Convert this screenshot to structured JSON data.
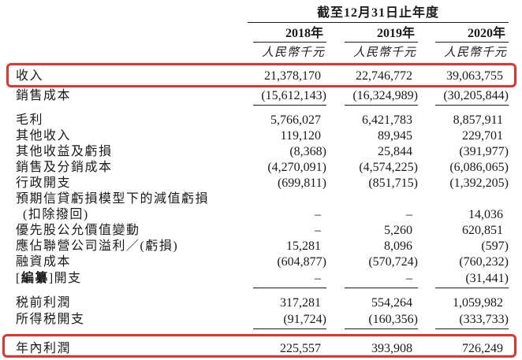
{
  "page": {
    "background": "#ffffff",
    "highlight_color": "#e9322a"
  },
  "table": {
    "header": {
      "period": "截至12月31日止年度",
      "years": [
        "2018年",
        "2019年",
        "2020年"
      ],
      "unit": "人民幣千元"
    },
    "rows": [
      {
        "label": "收入",
        "y2018": "21,378,170",
        "y2019": "22,746,772",
        "y2020": "39,063,755"
      },
      {
        "label": "銷售成本",
        "y2018": "(15,612,143)",
        "y2019": "(16,324,989)",
        "y2020": "(30,205,844)"
      },
      {
        "label": "毛利",
        "y2018": "5,766,027",
        "y2019": "6,421,783",
        "y2020": "8,857,911"
      },
      {
        "label": "其他收入",
        "y2018": "119,120",
        "y2019": "89,945",
        "y2020": "229,701"
      },
      {
        "label": "其他收益及虧損",
        "y2018": "(8,368)",
        "y2019": "25,844",
        "y2020": "(391,977)"
      },
      {
        "label": "銷售及分銷成本",
        "y2018": "(4,270,091)",
        "y2019": "(4,574,225)",
        "y2020": "(6,086,065)"
      },
      {
        "label": "行政開支",
        "y2018": "(699,811)",
        "y2019": "(851,715)",
        "y2020": "(1,392,205)"
      },
      {
        "label": "預期信貸虧損模型下的減值虧損",
        "y2018": "",
        "y2019": "",
        "y2020": ""
      },
      {
        "label": "(扣除撥回)",
        "y2018": "–",
        "y2019": "–",
        "y2020": "14,036"
      },
      {
        "label": "優先股公允價值變動",
        "y2018": "–",
        "y2019": "5,260",
        "y2020": "620,851"
      },
      {
        "label": "應佔聯營公司溢利／(虧損)",
        "y2018": "15,281",
        "y2019": "8,096",
        "y2020": "(597)"
      },
      {
        "label": "融資成本",
        "y2018": "(604,877)",
        "y2019": "(570,724)",
        "y2020": "(760,232)"
      },
      {
        "label_prefix": "[",
        "label_redacted": "編纂",
        "label_suffix": "]開支",
        "y2018": "–",
        "y2019": "–",
        "y2020": "(31,441)"
      },
      {
        "label": "税前利潤",
        "y2018": "317,281",
        "y2019": "554,264",
        "y2020": "1,059,982"
      },
      {
        "label": "所得税開支",
        "y2018": "(91,724)",
        "y2019": "(160,356)",
        "y2020": "(333,733)"
      },
      {
        "label": "年內利潤",
        "y2018": "225,557",
        "y2019": "393,908",
        "y2020": "726,249"
      }
    ]
  }
}
